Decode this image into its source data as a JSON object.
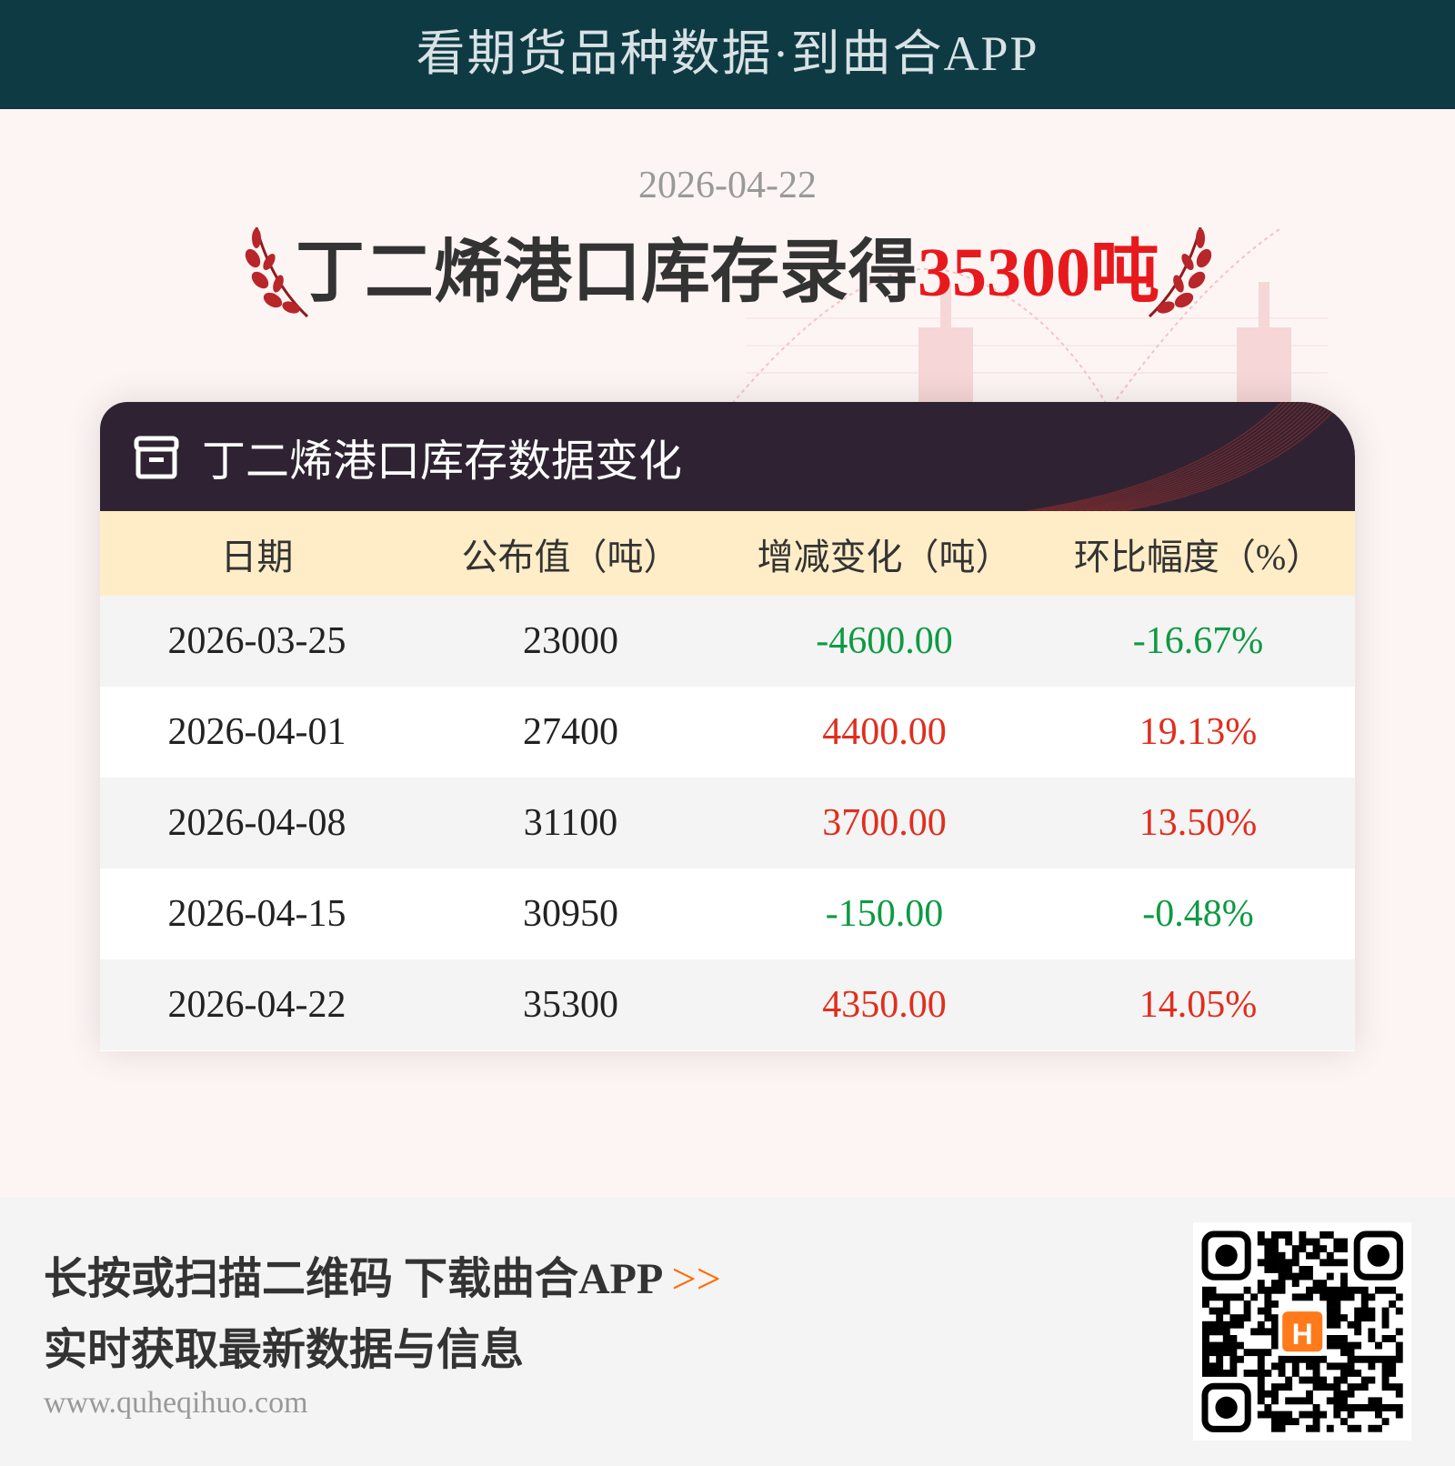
{
  "banner": {
    "text": "看期货品种数据·到曲合APP"
  },
  "report": {
    "date": "2026-04-22",
    "headline_prefix": "丁二烯港口库存录得",
    "headline_value": "35300吨"
  },
  "card": {
    "title": "丁二烯港口库存数据变化",
    "icon": "archive-box-icon",
    "columns": [
      "日期",
      "公布值（吨）",
      "增减变化（吨）",
      "环比幅度（%）"
    ],
    "rows": [
      {
        "date": "2026-03-25",
        "value": "23000",
        "change": "-4600.00",
        "pct": "-16.67%",
        "dir": "down"
      },
      {
        "date": "2026-04-01",
        "value": "27400",
        "change": "4400.00",
        "pct": "19.13%",
        "dir": "up"
      },
      {
        "date": "2026-04-08",
        "value": "31100",
        "change": "3700.00",
        "pct": "13.50%",
        "dir": "up"
      },
      {
        "date": "2026-04-15",
        "value": "30950",
        "change": "-150.00",
        "pct": "-0.48%",
        "dir": "down"
      },
      {
        "date": "2026-04-22",
        "value": "35300",
        "change": "4350.00",
        "pct": "14.05%",
        "dir": "up"
      }
    ]
  },
  "footer": {
    "line1": "长按或扫描二维码 下载曲合APP",
    "arrow": ">>",
    "line2": "实时获取最新数据与信息",
    "url": "www.quheqihuo.com",
    "qr_logo": "H"
  },
  "colors": {
    "up": "#e02e1e",
    "down": "#0e9a43",
    "banner": "#0e3a44",
    "card_head": "#2f2333",
    "table_head": "#ffedc7",
    "accent": "#e8191d"
  }
}
